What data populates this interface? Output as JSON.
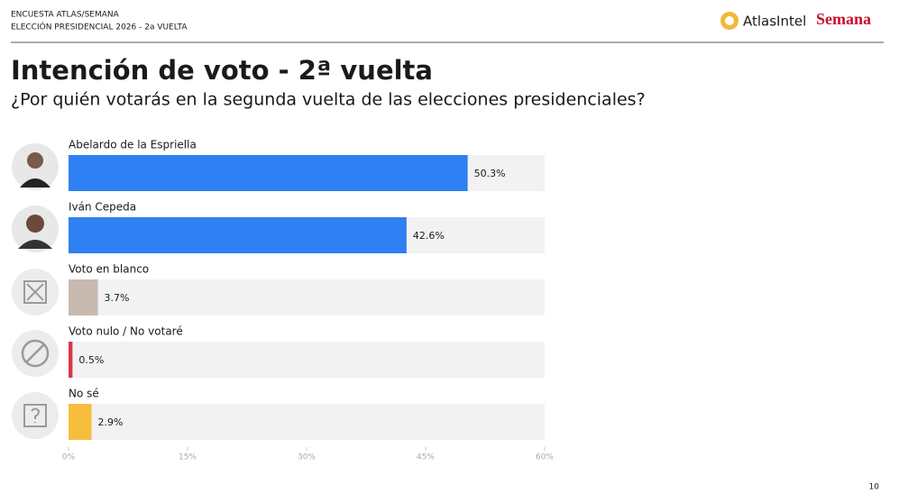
{
  "header": {
    "survey": "ENCUESTA ATLAS/SEMANA",
    "election": "ELECCIÓN PRESIDENCIAL 2026 - 2a VUELTA",
    "logo_atlas": "AtlasIntel",
    "logo_semana": "Semana"
  },
  "chart_data": {
    "type": "bar",
    "orientation": "horizontal",
    "title": "Intención de voto - 2ª vuelta",
    "subtitle": "¿Por quién votarás en la segunda vuelta de las elecciones presidenciales?",
    "categories": [
      "Abelardo de la Espriella",
      "Iván Cepeda",
      "Voto en blanco",
      "Voto nulo / No votaré",
      "No sé"
    ],
    "values": [
      50.3,
      42.6,
      3.7,
      0.5,
      2.9
    ],
    "value_labels": [
      "50.3%",
      "42.6%",
      "3.7%",
      "0.5%",
      "2.9%"
    ],
    "colors": [
      "#2f80f2",
      "#2f80f2",
      "#c8b9b0",
      "#d7384a",
      "#f6be3c"
    ],
    "xlim": [
      0,
      60
    ],
    "xticks": [
      {
        "value": 0,
        "label": "0%"
      },
      {
        "value": 15,
        "label": "15%"
      },
      {
        "value": 30,
        "label": "30%"
      },
      {
        "value": 45,
        "label": "45%"
      },
      {
        "value": 60,
        "label": "60%"
      }
    ]
  },
  "footer": {
    "page": "10"
  }
}
